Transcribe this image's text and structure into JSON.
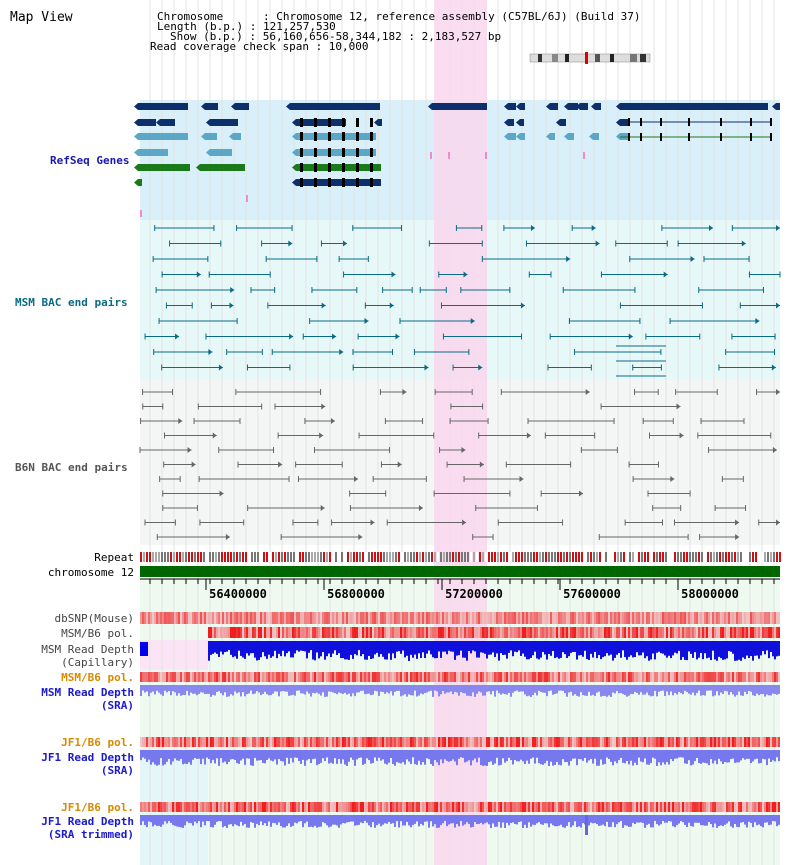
{
  "page": {
    "title": "Map View"
  },
  "header": {
    "chromosome_line": "Chromosome      : Chromosome 12, reference assembly (C57BL/6J) (Build 37)",
    "length_line": "Length (b.p.) : 121,257,530",
    "show_line": "Show (b.p.) : 56,160,656-58,344,182 : 2,183,527 bp",
    "coverage_line": "Read coverage check span : 10,000"
  },
  "tracks": {
    "refseq": "RefSeq Genes",
    "msm_bac": "MSM BAC end pairs",
    "b6n_bac": "B6N BAC end pairs",
    "repeat": "Repeat",
    "chromosome": "chromosome 12",
    "dbsnp": "dbSNP(Mouse)",
    "msm_b6_pol_1": "MSM/B6 pol.",
    "msm_depth_cap_1": "MSM Read Depth",
    "msm_depth_cap_2": "(Capillary)",
    "msm_b6_pol_2": "MSM/B6 pol.",
    "msm_depth_sra_1": "MSM Read Depth",
    "msm_depth_sra_2": "(SRA)",
    "jf1_b6_pol_1": "JF1/B6 pol.",
    "jf1_depth_sra_1": "JF1 Read Depth",
    "jf1_depth_sra_2": "(SRA)",
    "jf1_b6_pol_2": "JF1/B6 pol.",
    "jf1_depth_trim_1": "JF1 Read Depth",
    "jf1_depth_trim_2": "(SRA trimmed)"
  },
  "axis": {
    "ticks": [
      "56400000",
      "56800000",
      "57200000",
      "57600000",
      "58000000"
    ]
  },
  "colors": {
    "refseq_label": "#1a1aaa",
    "msm_label": "#0b6a86",
    "b6n_label": "#555555",
    "pol_label": "#d88a00",
    "depth_label": "#1a1acc",
    "highlight": "#f9d7ee",
    "chromosome_bar": "#006600"
  }
}
